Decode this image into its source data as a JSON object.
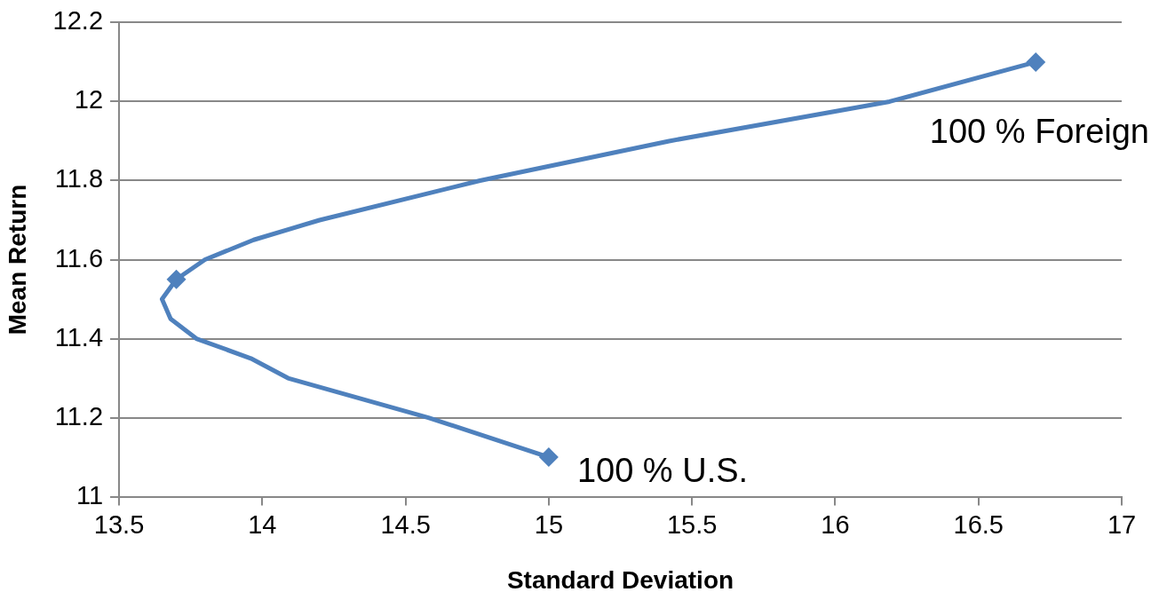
{
  "chart_data": {
    "type": "scatter",
    "xlabel": "Standard Deviation",
    "ylabel": "Mean Return",
    "xlim": [
      13.5,
      17
    ],
    "xticks": [
      13.5,
      14,
      14.5,
      15,
      15.5,
      16,
      16.5,
      17
    ],
    "ylim": [
      11,
      12.2
    ],
    "yticks": [
      11,
      11.2,
      11.4,
      11.6,
      11.8,
      12,
      12.2
    ],
    "grid": "y",
    "legend": false,
    "series": [
      {
        "type": "line",
        "color": "#4f81bd",
        "marker": "none",
        "line_style": "solid",
        "x": [
          15,
          14.58,
          14.09,
          13.96,
          13.77,
          13.68,
          13.65,
          13.7,
          13.8,
          13.97,
          14.2,
          14.76,
          15.42,
          16.19,
          16.7
        ],
        "values": [
          11.1,
          11.2,
          11.3,
          11.35,
          11.4,
          11.45,
          11.5,
          11.55,
          11.6,
          11.65,
          11.7,
          11.8,
          11.9,
          12,
          12.1
        ]
      },
      {
        "type": "scatter",
        "color": "#4f81bd",
        "marker": "diamond",
        "x": [
          15,
          13.7,
          16.7
        ],
        "values": [
          11.1,
          11.55,
          12.1
        ]
      }
    ],
    "annotations": [
      {
        "text": "100 % Foreign",
        "x": 16.7,
        "y": 12.1
      },
      {
        "text": "100 % U.S.",
        "x": 15,
        "y": 11.1
      }
    ]
  }
}
